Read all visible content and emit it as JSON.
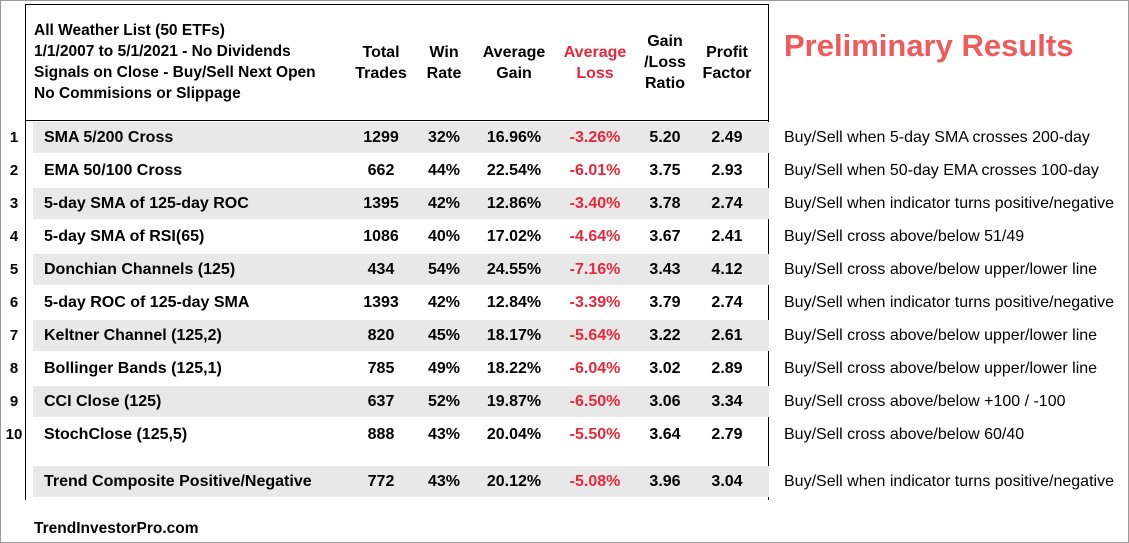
{
  "header": {
    "desc_lines": [
      "All Weather List (50 ETFs)",
      "1/1/2007 to 5/1/2021 -  No Dividends",
      "Signals on Close - Buy/Sell Next Open",
      "No Commisions or Slippage"
    ],
    "columns": [
      "Total\nTrades",
      "Win\nRate",
      "Average\nGain",
      "Average\nLoss",
      "Gain\n/Loss\nRatio",
      "Profit\nFactor"
    ]
  },
  "badge": "Preliminary Results",
  "rows": [
    {
      "num": "1",
      "name": "SMA 5/200 Cross",
      "trades": "1299",
      "win": "32%",
      "gain": "16.96%",
      "loss": "-3.26%",
      "ratio": "5.20",
      "pf": "2.49",
      "note": "Buy/Sell when 5-day SMA crosses 200-day"
    },
    {
      "num": "2",
      "name": "EMA 50/100 Cross",
      "trades": "662",
      "win": "44%",
      "gain": "22.54%",
      "loss": "-6.01%",
      "ratio": "3.75",
      "pf": "2.93",
      "note": "Buy/Sell when 50-day EMA crosses 100-day"
    },
    {
      "num": "3",
      "name": "5-day SMA of 125-day ROC",
      "trades": "1395",
      "win": "42%",
      "gain": "12.86%",
      "loss": "-3.40%",
      "ratio": "3.78",
      "pf": "2.74",
      "note": "Buy/Sell when indicator turns positive/negative"
    },
    {
      "num": "4",
      "name": "5-day SMA of RSI(65)",
      "trades": "1086",
      "win": "40%",
      "gain": "17.02%",
      "loss": "-4.64%",
      "ratio": "3.67",
      "pf": "2.41",
      "note": "Buy/Sell cross above/below 51/49"
    },
    {
      "num": "5",
      "name": "Donchian Channels (125)",
      "trades": "434",
      "win": "54%",
      "gain": "24.55%",
      "loss": "-7.16%",
      "ratio": "3.43",
      "pf": "4.12",
      "note": "Buy/Sell cross above/below upper/lower line"
    },
    {
      "num": "6",
      "name": "5-day ROC of 125-day SMA",
      "trades": "1393",
      "win": "42%",
      "gain": "12.84%",
      "loss": "-3.39%",
      "ratio": "3.79",
      "pf": "2.74",
      "note": "Buy/Sell when indicator turns positive/negative"
    },
    {
      "num": "7",
      "name": "Keltner Channel (125,2)",
      "trades": "820",
      "win": "45%",
      "gain": "18.17%",
      "loss": "-5.64%",
      "ratio": "3.22",
      "pf": "2.61",
      "note": "Buy/Sell cross above/below upper/lower line"
    },
    {
      "num": "8",
      "name": "Bollinger Bands (125,1)",
      "trades": "785",
      "win": "49%",
      "gain": "18.22%",
      "loss": "-6.04%",
      "ratio": "3.02",
      "pf": "2.89",
      "note": "Buy/Sell cross above/below upper/lower line"
    },
    {
      "num": "9",
      "name": "CCI Close (125)",
      "trades": "637",
      "win": "52%",
      "gain": "19.87%",
      "loss": "-6.50%",
      "ratio": "3.06",
      "pf": "3.34",
      "note": "Buy/Sell cross above/below +100 / -100"
    },
    {
      "num": "10",
      "name": "StochClose (125,5)",
      "trades": "888",
      "win": "43%",
      "gain": "20.04%",
      "loss": "-5.50%",
      "ratio": "3.64",
      "pf": "2.79",
      "note": "Buy/Sell cross above/below 60/40"
    }
  ],
  "composite": {
    "name": "Trend Composite Positive/Negative",
    "trades": "772",
    "win": "43%",
    "gain": "20.12%",
    "loss": "-5.08%",
    "ratio": "3.96",
    "pf": "3.04",
    "note": "Buy/Sell when indicator turns positive/negative"
  },
  "footer": "TrendInvestorPro.com",
  "colors": {
    "loss_red": "#e8283a",
    "badge_red": "#f05a5a",
    "band_gray": "#e8e8e8"
  }
}
